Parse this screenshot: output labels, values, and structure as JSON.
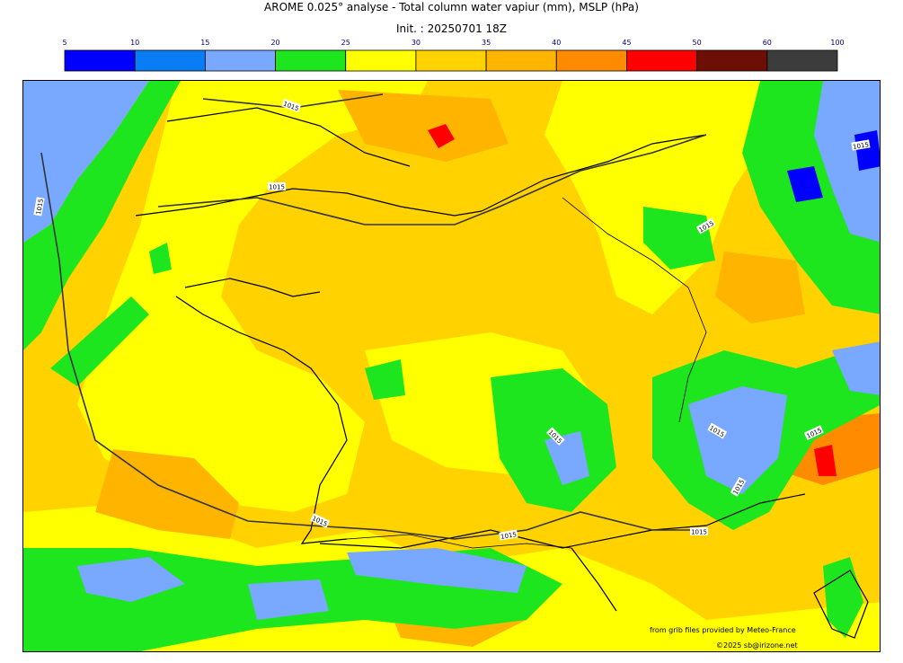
{
  "title": "AROME 0.025° analyse - Total column water vapiur (mm), MSLP (hPa)",
  "subtitle": "Init. : 20250701 18Z",
  "colorbar": {
    "ticks": [
      "5",
      "10",
      "15",
      "20",
      "25",
      "30",
      "35",
      "40",
      "45",
      "50",
      "60",
      "100"
    ],
    "colors": [
      "#0000ff",
      "#0a7df5",
      "#78a8ff",
      "#1ee61e",
      "#ffff00",
      "#ffd200",
      "#ffb400",
      "#ff8c00",
      "#ff0000",
      "#6e0f05",
      "#3c3c3c"
    ]
  },
  "map": {
    "isobar_value": "1015",
    "isobar_label_count": 12
  },
  "credits": {
    "source": "from grib files provided by Meteo-France",
    "copyright": "©2025 sb@irizone.net"
  }
}
